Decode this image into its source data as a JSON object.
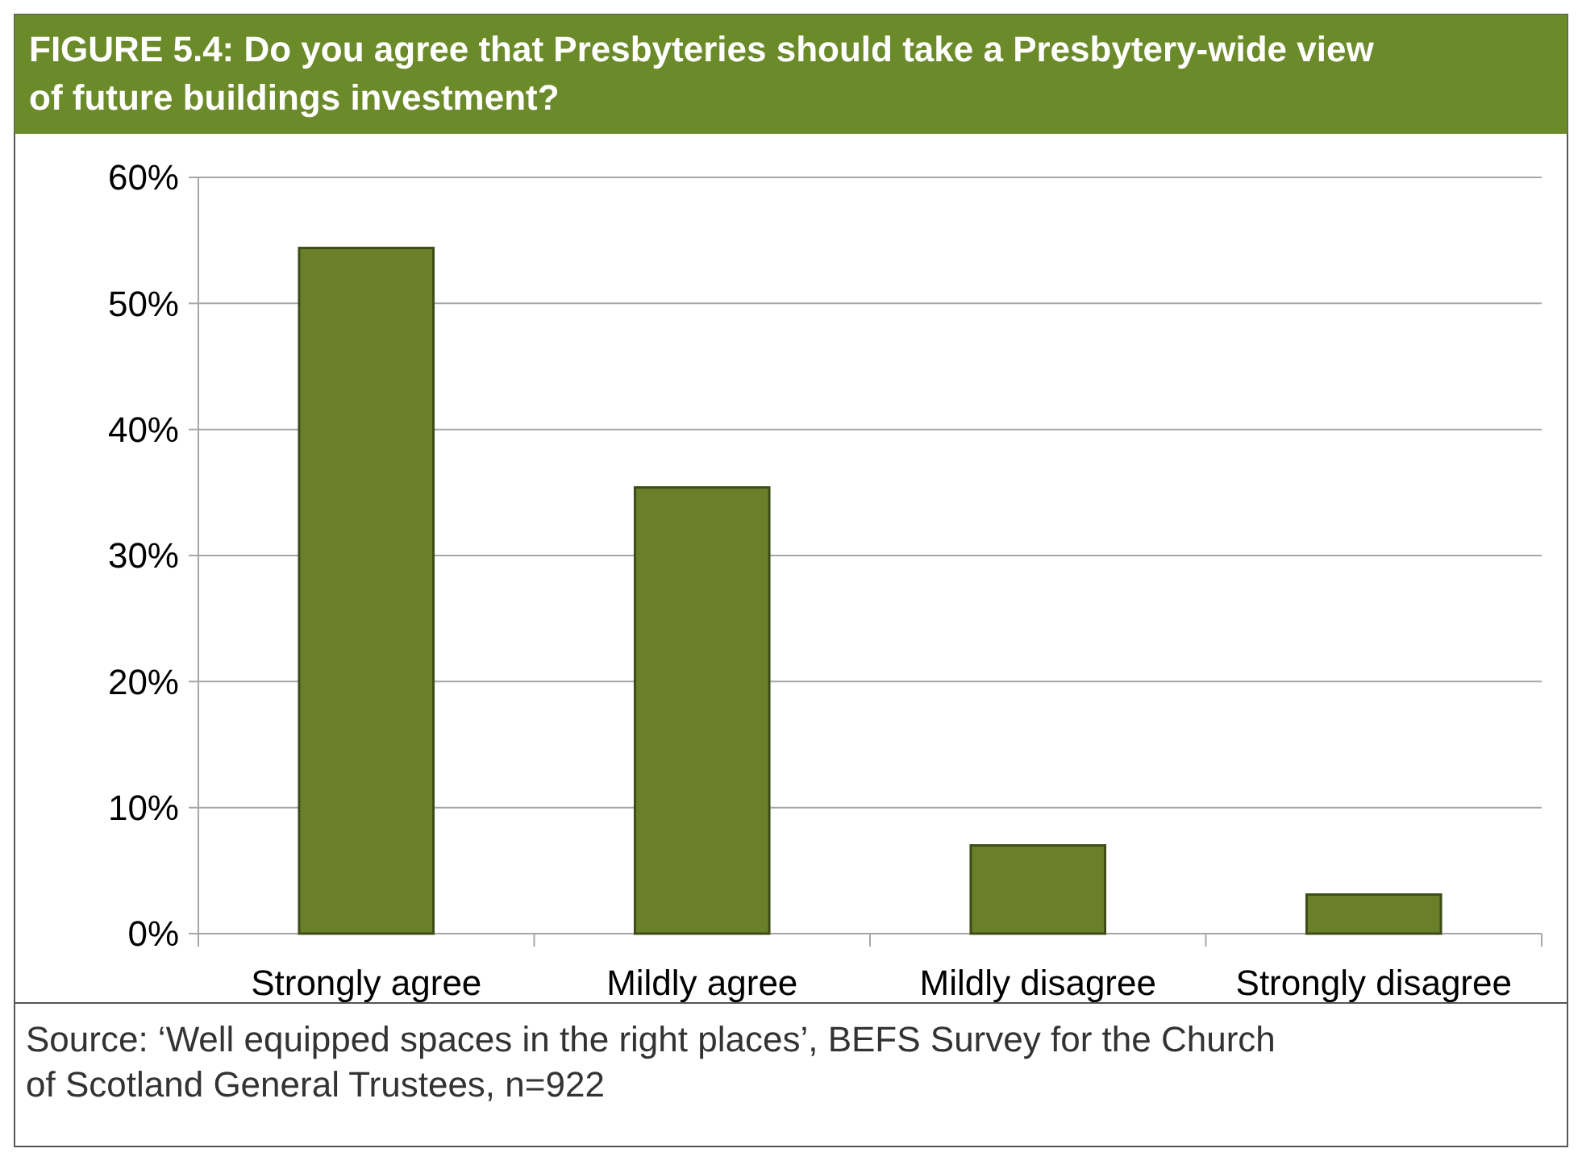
{
  "chart_data": {
    "type": "bar",
    "title": "FIGURE 5.4: Do you agree that Presbyteries should take a Presbytery-wide view of future buildings investment?",
    "categories": [
      "Strongly agree",
      "Mildly agree",
      "Mildly disagree",
      "Strongly disagree"
    ],
    "values": [
      54.4,
      35.4,
      7.0,
      3.1
    ],
    "color": "#6a7f2a",
    "ylim": [
      0,
      60
    ],
    "yticks": [
      {
        "value": 0,
        "label": "0%"
      },
      {
        "value": 10,
        "label": "10%"
      },
      {
        "value": 20,
        "label": "20%"
      },
      {
        "value": 30,
        "label": "30%"
      },
      {
        "value": 40,
        "label": "40%"
      },
      {
        "value": 50,
        "label": "50%"
      },
      {
        "value": 60,
        "label": "60%"
      }
    ],
    "grid": "y",
    "annotations": [
      "Source: ‘Well equipped spaces in the right places’, BEFS Survey for the Church of Scotland General Trustees, n=922"
    ]
  }
}
